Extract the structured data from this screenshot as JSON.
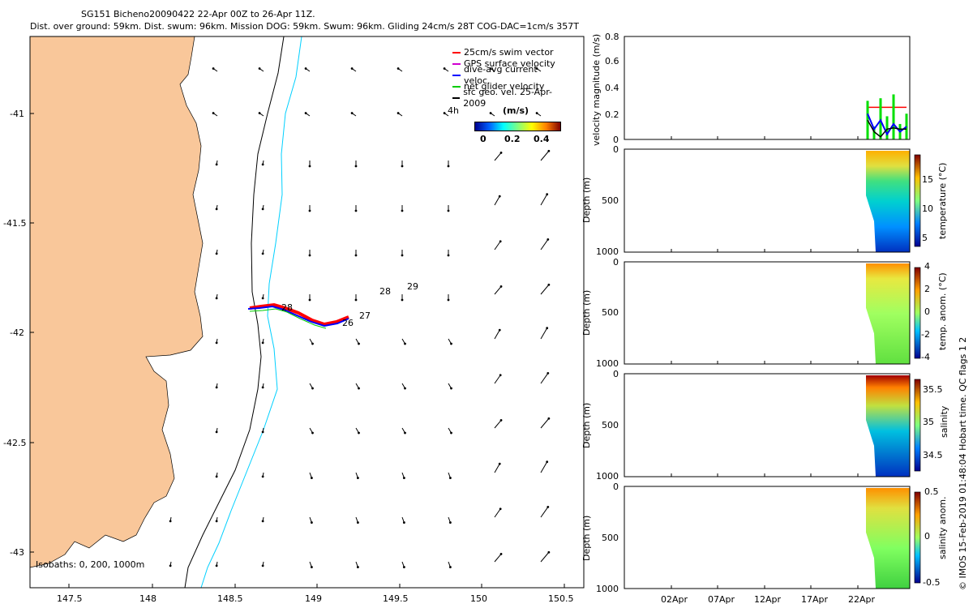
{
  "title_line1": "SG151 Bicheno20090422 22-Apr 00Z to 26-Apr 11Z.",
  "title_line2": "Dist. over ground: 59km. Dist. swum: 96km. Mission DOG: 59km. Swum: 96km. Gliding 24cm/s 28T COG-DAC=1cm/s 357T",
  "copyright": "© IMOS 15-Feb-2019 01:48:04 Hobart time. QC flags 1  2",
  "colors": {
    "land": "#f9c79a",
    "coast": "#000000",
    "isobath_1000": "#000000",
    "isobath_200": "#00d0ff",
    "swim": "#ff0000",
    "gps": "#d000d0",
    "dac": "#0000ff",
    "net": "#00e000",
    "geo": "#000000"
  },
  "map": {
    "legend": [
      {
        "label": "25cm/s swim vector",
        "color": "#ff0000"
      },
      {
        "label": "GPS surface velocity",
        "color": "#d000d0"
      },
      {
        "label": "dive-avg current veloc.",
        "color": "#0000ff"
      },
      {
        "label": "net glider velocity",
        "color": "#00cc00"
      },
      {
        "label": "sfc geo. vel. 25-Apr-2009",
        "color": "#000000"
      }
    ],
    "scale_label": "4h",
    "colorbar_title": "(m/s)",
    "colorbar_ticks": [
      "0",
      "0.2",
      "0.4"
    ],
    "isobaths_note": "Isobaths: 0, 200, 1000m",
    "day_labels": [
      {
        "text": "28",
        "lon": 148.87,
        "lat": -41.92
      },
      {
        "text": "26",
        "lon": 149.2,
        "lat": -41.97
      },
      {
        "text": "27",
        "lon": 149.27,
        "lat": -41.88
      },
      {
        "text": "28",
        "lon": 149.4,
        "lat": -41.81
      },
      {
        "text": "29",
        "lon": 149.58,
        "lat": -41.79
      }
    ]
  },
  "chart_data": [
    {
      "type": "line",
      "name": "map",
      "xlim": [
        147.3,
        150.65
      ],
      "ylim": [
        -43.15,
        -40.65
      ],
      "x_ticks": [
        "147.5",
        "148",
        "148.5",
        "149",
        "149.5",
        "150",
        "150.5"
      ],
      "y_ticks": [
        "-41",
        "-41.5",
        "-42",
        "-42.5",
        "-43"
      ],
      "glider_track": {
        "lon": [
          148.6,
          148.7,
          148.8,
          148.9,
          149.0,
          149.1,
          149.2
        ],
        "lat": [
          -41.9,
          -41.89,
          -41.92,
          -41.96,
          -41.98,
          -41.95,
          -41.93
        ]
      }
    },
    {
      "type": "line",
      "name": "velocity",
      "ylabel": "velocity magnitude (m/s)",
      "ylim": [
        0,
        0.8
      ],
      "y_ticks": [
        "0",
        "0.2",
        "0.4",
        "0.6",
        "0.8"
      ],
      "x_ticks": [
        "02Apr",
        "07Apr",
        "12Apr",
        "17Apr",
        "22Apr"
      ],
      "series": [
        {
          "name": "swim",
          "values": [
            0.25,
            0.25,
            0.25,
            0.25
          ]
        },
        {
          "name": "net",
          "values": [
            0.3,
            0.1,
            0.35,
            0.2
          ]
        },
        {
          "name": "dac",
          "values": [
            0.2,
            0.05,
            0.15,
            0.1
          ]
        },
        {
          "name": "geo",
          "values": [
            0.15,
            0.02,
            0.1,
            0.08
          ]
        }
      ]
    },
    {
      "type": "heatmap",
      "name": "temperature",
      "ylabel": "Depth (m)",
      "cbar_label": "temperature (°C)",
      "ylim": [
        1000,
        0
      ],
      "y_ticks": [
        "0",
        "500",
        "1000"
      ],
      "cbar_ticks": [
        "15",
        "10",
        "5"
      ]
    },
    {
      "type": "heatmap",
      "name": "temp-anom",
      "ylabel": "Depth (m)",
      "cbar_label": "temp. anom. (°C)",
      "ylim": [
        1000,
        0
      ],
      "y_ticks": [
        "0",
        "500",
        "1000"
      ],
      "cbar_ticks": [
        "4",
        "2",
        "0",
        "-2",
        "-4"
      ]
    },
    {
      "type": "heatmap",
      "name": "salinity",
      "ylabel": "Depth (m)",
      "cbar_label": "salinity",
      "ylim": [
        1000,
        0
      ],
      "y_ticks": [
        "0",
        "500",
        "1000"
      ],
      "cbar_ticks": [
        "35.5",
        "35",
        "34.5"
      ]
    },
    {
      "type": "heatmap",
      "name": "sal-anom",
      "ylabel": "Depth (m)",
      "cbar_label": "salinity anom.",
      "ylim": [
        1000,
        0
      ],
      "y_ticks": [
        "0",
        "500",
        "1000"
      ],
      "cbar_ticks": [
        "0.5",
        "0",
        "-0.5"
      ]
    }
  ]
}
